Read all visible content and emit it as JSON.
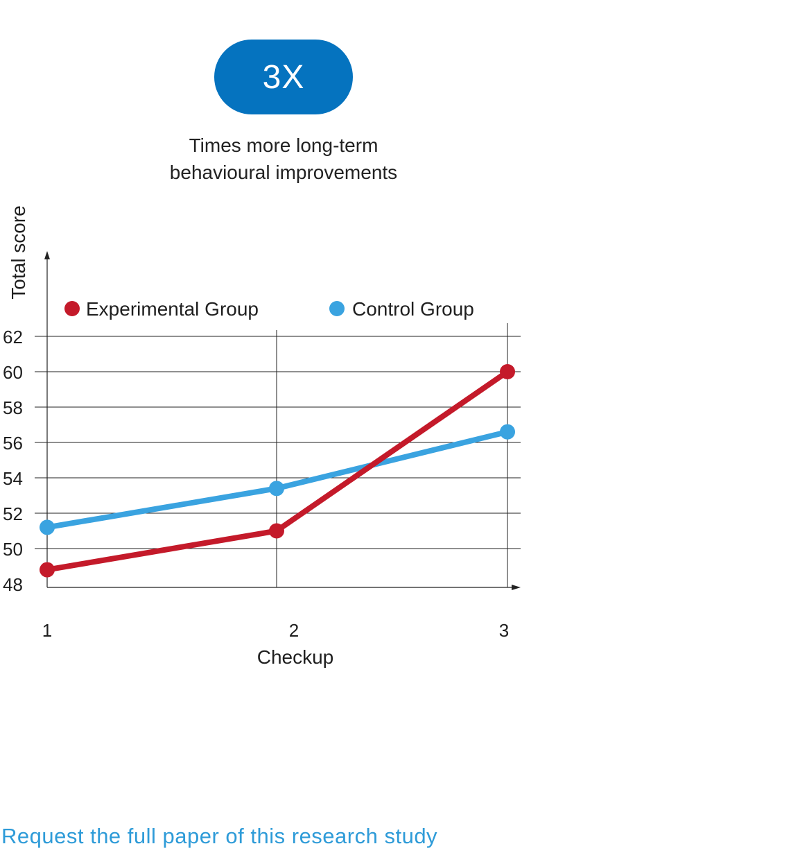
{
  "badge": {
    "value": "3X"
  },
  "caption": {
    "line1": "Times more long-term",
    "line2": "behavioural improvements"
  },
  "colors": {
    "badge_bg": "#0573bf",
    "experimental": "#c41a2a",
    "control": "#3aa3e0",
    "link": "#2e9bd8"
  },
  "chart_data": {
    "type": "line",
    "title": "",
    "xlabel": "Checkup",
    "ylabel": "Total score",
    "x": [
      1,
      2,
      3
    ],
    "x_tick_labels": [
      "1",
      "2",
      "3"
    ],
    "y_tick_labels": [
      "48",
      "50",
      "52",
      "54",
      "56",
      "58",
      "60",
      "62"
    ],
    "ylim": [
      48,
      62
    ],
    "grid": true,
    "legend_position": "top",
    "series": [
      {
        "name": "Experimental Group",
        "color": "#c41a2a",
        "values": [
          48.8,
          51.0,
          60.0
        ]
      },
      {
        "name": "Control Group",
        "color": "#3aa3e0",
        "values": [
          51.2,
          53.4,
          56.6
        ]
      }
    ]
  },
  "footer": {
    "link_text": "Request the full paper of this research study"
  }
}
